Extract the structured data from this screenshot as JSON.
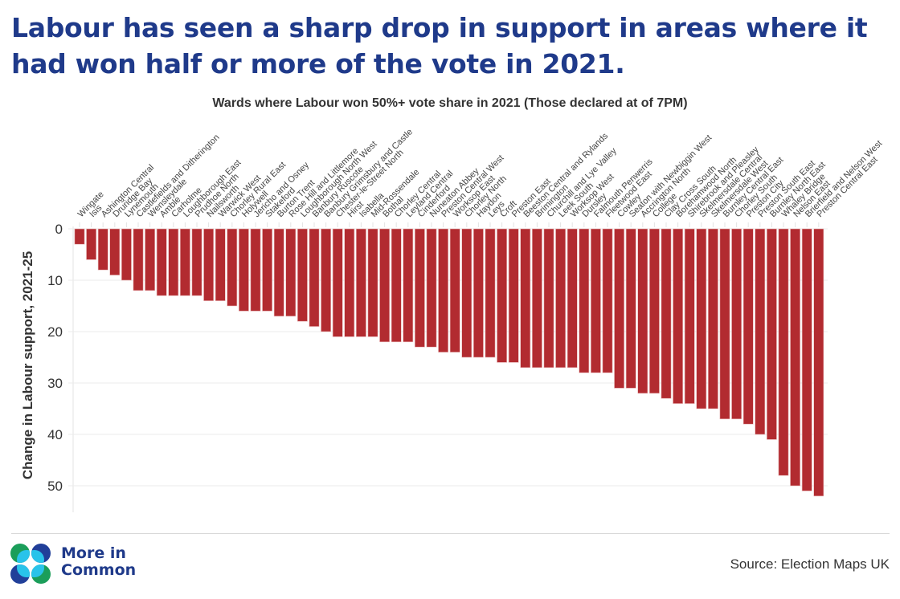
{
  "headline": "Labour has seen a sharp drop in support in areas where it had won half or more of the vote in 2021.",
  "footer": {
    "logo_icon": "four-circles-logo-icon",
    "logo_line1": "More in",
    "logo_line2": "Common",
    "source": "Source: Election Maps UK"
  },
  "colors": {
    "bar": "#b22b30",
    "headline": "#1f3a8a",
    "logo_green": "#1b9e5a",
    "logo_navy": "#213f99",
    "logo_cyan": "#29c3ea"
  },
  "chart_data": {
    "type": "bar",
    "title": "Wards where Labour won 50%+ vote share in 2021 (Those declared at of 7PM)",
    "xlabel": "",
    "ylabel": "Change in Labour support, 2021-25",
    "y_inverted": true,
    "ylim": [
      0,
      55
    ],
    "yticks": [
      0,
      10,
      20,
      30,
      40,
      50
    ],
    "grid": true,
    "legend": "none",
    "categories": [
      "Wingate",
      "Isis",
      "Ashington Central",
      "Druridge Bay",
      "Lynemouth",
      "Castlefields and Ditherington",
      "Wensleydale",
      "Amble",
      "Carholme",
      "Loughborough East",
      "Prudhoe North",
      "Nailsworth",
      "Warwick West",
      "Chorley Rural East",
      "Holywell",
      "Jericho and Osney",
      "Stakeford",
      "Burton Trent",
      "Rose Hill and Littlemore",
      "Loughborough North West",
      "Banbury Ruscote",
      "Banbury Grimsbury and Castle",
      "Chester-le-Street North",
      "Hirst",
      "Isabella",
      "Mid-Rossendale",
      "Bothal",
      "Chorley Central",
      "Leyland Central",
      "Cinderford",
      "Nuneaton Abbey",
      "Preston Central West",
      "Worksop East",
      "Chorley North",
      "Haydon",
      "Leys",
      "Croft",
      "Preston East",
      "Beeston Central and Rylands",
      "Brimington",
      "Churchill and Lye Valley",
      "Leek South",
      "Worksop West",
      "Dursley",
      "Falmouth Penwerris",
      "Fleetwood East",
      "Cowley",
      "Seaton with Newbiggin West",
      "Accrington North",
      "College",
      "Clay Cross South",
      "Borehamwood North",
      "Shirebrook and Pleasley",
      "Skelmersdale Central",
      "Skelmersdale West",
      "Burnley Central East",
      "Chorley South",
      "Preston City",
      "Preston South East",
      "Burnley North East",
      "Whaley Bridge",
      "Nelson East",
      "Brierfield and Nelson West",
      "Preston Central East"
    ],
    "values": [
      3,
      6,
      8,
      9,
      10,
      12,
      12,
      13,
      13,
      13,
      13,
      14,
      14,
      15,
      16,
      16,
      16,
      17,
      17,
      18,
      19,
      20,
      21,
      21,
      21,
      21,
      22,
      22,
      22,
      23,
      23,
      24,
      24,
      25,
      25,
      25,
      26,
      26,
      27,
      27,
      27,
      27,
      27,
      28,
      28,
      28,
      31,
      31,
      32,
      32,
      33,
      34,
      34,
      35,
      35,
      37,
      37,
      38,
      40,
      41,
      48,
      50,
      51,
      52
    ]
  }
}
